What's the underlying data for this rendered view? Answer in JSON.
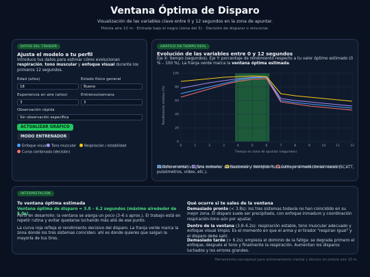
{
  "header": {
    "title": "Ventana Óptima de Disparo",
    "subtitle": "Visualización de las variables clave entre 0 y 12 segundos en la zona de apuntar.",
    "meta": "Pistola aire 10 m · Entrada bajo el negro (zona del 5) · Decisión de disparar o renunciar."
  },
  "profile": {
    "badge": "DATOS DEL TIRADOR",
    "heading": "Ajusta el modelo a tu perfil",
    "intro": [
      "Introduce tus datos para estimar cómo evolucionan ",
      "respiración",
      ", ",
      "tono muscular",
      " y ",
      "enfoque visual",
      " durante los primeros 12 segundos."
    ],
    "fields": [
      {
        "label": "Edad (años)",
        "value": "18"
      },
      {
        "label": "Estado físico general",
        "value": "Bueno"
      },
      {
        "label": "Experiencia en aire (años)",
        "value": "3"
      },
      {
        "label": "Entrenos/semana",
        "value": "3"
      }
    ],
    "observation": {
      "label": "Observación rápida",
      "value": "Sin observación específica"
    },
    "button": "ACTUALIZAR GRÁFICO",
    "coach_mode": "MODO ENTRENADOR",
    "legend": [
      "Enfoque visual",
      "Tono muscular",
      "Respiración / estabilidad",
      "Curva combinada (decisión)"
    ]
  },
  "chart_panel": {
    "badge": "GRÁFICO EN TIEMPO REAL",
    "heading": "Evolución de las variables entre 0 y 12 segundos",
    "description": [
      "Eje X: tiempo (segundos). Eje Y: porcentaje de rendimiento respecto a tu valor óptimo estimado (0 % – 100 %). La franja verde marca la ",
      "ventana óptima estimada",
      "."
    ],
    "note": "Modelo orientativo para entrenar sensaciones y tiempos. No sustituye a mediciones reales (SCATT, pulsómetros, vídeo, etc.)."
  },
  "chart_data": {
    "type": "line",
    "xlabel": "Tiempo en zona de apuntar (segundos)",
    "ylabel": "Rendimiento relativo (%)",
    "x": [
      0,
      1,
      2,
      3,
      4,
      5,
      6,
      7,
      8,
      9,
      10,
      11,
      12
    ],
    "xlim": [
      0,
      12
    ],
    "ylim": [
      0,
      100
    ],
    "xticks": [
      0,
      1,
      2,
      3,
      4,
      5,
      6,
      7,
      8,
      9,
      10,
      11,
      12
    ],
    "yticks": [
      0,
      20,
      40,
      60,
      80,
      100
    ],
    "grid": true,
    "highlight": [
      3.8,
      6.2
    ],
    "highlight_color": "#1d5a3a",
    "series": [
      {
        "name": "Enfoque visual",
        "color": "#4ea3ff",
        "values": [
          70,
          75,
          80,
          85,
          90,
          93,
          94,
          60,
          57,
          55,
          53,
          51,
          49
        ]
      },
      {
        "name": "Tono muscular",
        "color": "#a78bfa",
        "values": [
          78,
          82,
          86,
          89,
          92,
          94,
          94,
          63,
          60,
          58,
          56,
          54,
          52
        ]
      },
      {
        "name": "Respiración / estabilidad",
        "color": "#facc15",
        "values": [
          88,
          90,
          92,
          94,
          95,
          96,
          95,
          70,
          67,
          65,
          63,
          61,
          59
        ]
      },
      {
        "name": "Curva combinada (decisión/acción)",
        "color": "#f87171",
        "values": [
          65,
          71,
          77,
          83,
          88,
          91,
          92,
          58,
          55,
          52,
          50,
          48,
          46
        ]
      }
    ]
  },
  "interpretation": {
    "badge": "INTERPRETACIÓN",
    "left": {
      "heading": "Tu ventana óptima estimada",
      "window": "Ventana óptima de disparo ≈ 3.8 – 6.2 segundos (máximo alrededor de 5.0s).",
      "p1": "Perfil en desarrollo: la ventana se alarga un poco (3–6 s aprox.). El trabajo está en repetir rutina y evitar quedarse luchando más allá de ese punto.",
      "p2": "La curva roja refleja el rendimiento decisivo del disparo. La franja verde marca la zona donde los tres sistemas coinciden: ahí es donde quieres que salgan la mayoría de tus tiros."
    },
    "right": {
      "heading": "Qué ocurre si te sales de la ventana",
      "items": [
        {
          "lead": "Demasiado pronto",
          "text": " (< 3.8s): los tres sistemas todavía no han coincidido en su mejor zona. El disparo suele ser precipitado, con enfoque inmaduro y coordinación respiración-tono aún por ajustar."
        },
        {
          "lead": "Dentro de la ventana",
          "text": " (3.8–6.2s): respiración estable, tono muscular adecuado y enfoque visual limpio. Es el momento en que el arma y el tirador \"respiran igual\" y el disparo debe salir."
        },
        {
          "lead": "Demasiado tarde",
          "text": " (> 6.2s): empieza el dominio de la fatiga: se degrada primero el enfoque, después el tono y finalmente la respiración. Aumentan los disparos luchados y los errores grandes."
        }
      ]
    }
  },
  "footer": "Herramienta conceptual para entrenamiento mental y técnico en pistola aire 10 m."
}
